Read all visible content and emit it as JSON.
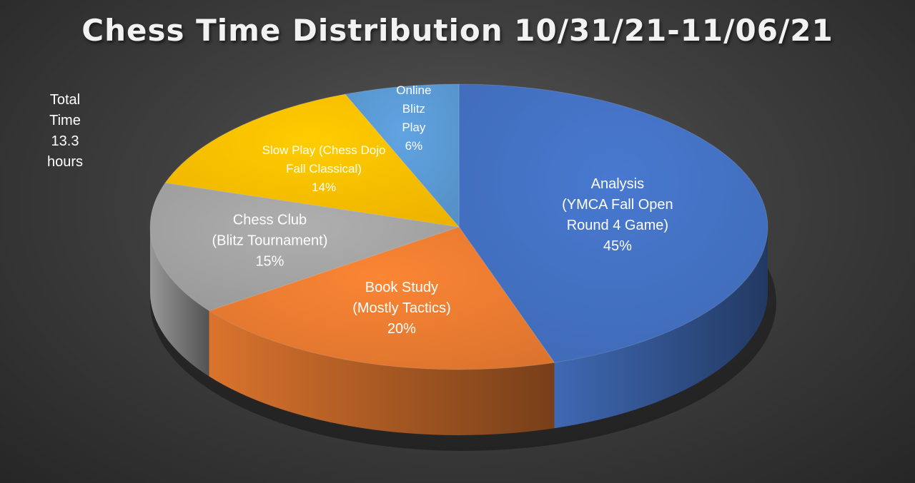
{
  "title": "Chess Time Distribution 10/31/21-11/06/21",
  "note": {
    "lines": [
      "Total",
      "Time",
      "13.3",
      "hours"
    ]
  },
  "chart_data": {
    "type": "pie",
    "title": "Chess Time Distribution 10/31/21-11/06/21",
    "slices": [
      {
        "name": "Analysis (YMCA Fall Open Round 4 Game)",
        "value": 45,
        "color": "#4472c4",
        "label_lines": [
          "Analysis",
          "(YMCA Fall Open",
          "Round 4 Game)",
          "45%"
        ]
      },
      {
        "name": "Book Study (Mostly Tactics)",
        "value": 20,
        "color": "#ed7d31",
        "label_lines": [
          "Book Study",
          "(Mostly Tactics)",
          "20%"
        ]
      },
      {
        "name": "Chess Club (Blitz Tournament)",
        "value": 15,
        "color": "#a5a5a5",
        "label_lines": [
          "Chess Club",
          "(Blitz Tournament)",
          "15%"
        ]
      },
      {
        "name": "Slow Play (Chess Dojo Fall Classical)",
        "value": 14,
        "color": "#ffc000",
        "label_lines": [
          "Slow Play (Chess Dojo",
          "Fall Classical)",
          "14%"
        ]
      },
      {
        "name": "Online Blitz Play",
        "value": 6,
        "color": "#5b9bd5",
        "label_lines": [
          "Online",
          "Blitz",
          "Play",
          "6%"
        ]
      }
    ]
  }
}
